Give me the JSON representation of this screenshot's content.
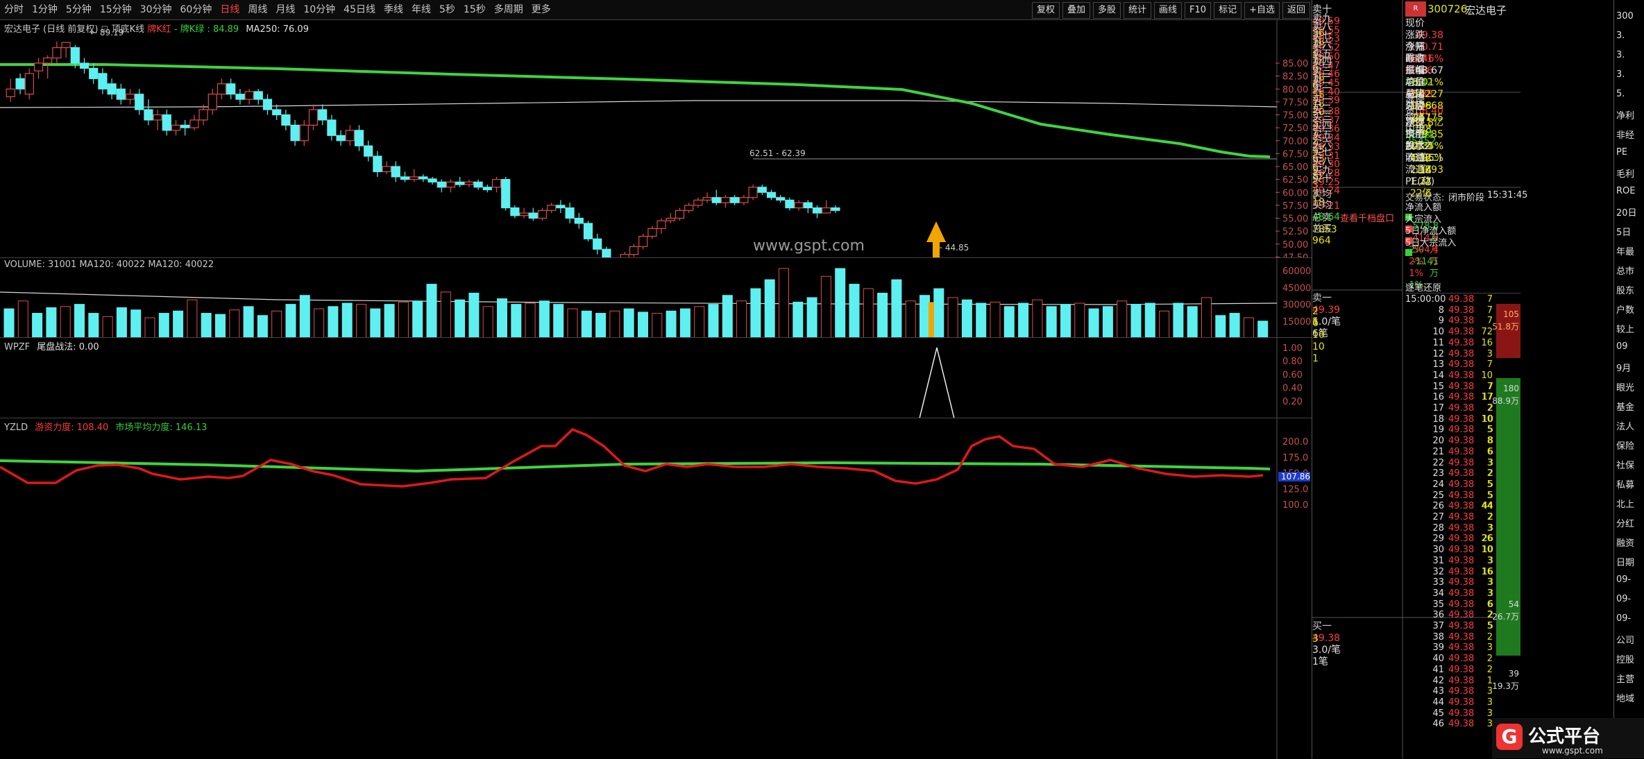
{
  "toolbar": {
    "periods": [
      "分时",
      "1分钟",
      "5分钟",
      "15分钟",
      "30分钟",
      "60分钟",
      "日线",
      "周线",
      "月线",
      "10分钟",
      "45日线",
      "季线",
      "年线",
      "5秒",
      "15秒",
      "多周期",
      "更多"
    ],
    "active_period": "日线",
    "buttons": [
      "复权",
      "叠加",
      "多股",
      "统计",
      "画线",
      "F10",
      "标记",
      "+自选",
      "返回"
    ]
  },
  "main_chart": {
    "title": "宏达电子 (日线 前复权)",
    "indicator": "顶底K线",
    "legend1": "牌K红",
    "legend2": "牌K绿",
    "legend2_val": "84.89",
    "ma_label": "MA250: 76.09",
    "high_label": "89.19",
    "range_label": "62.51 - 62.39",
    "low_label": "44.85",
    "watermark": "www.gspt.com",
    "y_ticks": [
      "85.00",
      "82.50",
      "80.00",
      "77.50",
      "75.00",
      "72.50",
      "70.00",
      "67.50",
      "65.00",
      "62.50",
      "60.00",
      "57.50",
      "55.00",
      "52.50",
      "50.00",
      "47.50",
      "45.00"
    ]
  },
  "volume_panel": {
    "title": "VOLUME: 31001  MA120: 40022  MA120: 40022",
    "y_ticks": [
      "60000",
      "45000",
      "30000",
      "15000"
    ]
  },
  "wpzf_panel": {
    "title": "WPZF",
    "sub": "尾盘战法: 0.00",
    "y_ticks": [
      "1.00",
      "0.80",
      "0.60",
      "0.40",
      "0.20"
    ]
  },
  "yzld_panel": {
    "title": "YZLD",
    "sub1": "游资力度: 108.40",
    "sub2": "市场平均力度: 146.13",
    "y_ticks": [
      "200.0",
      "175.0",
      "150.0",
      "125.0",
      "100.0"
    ],
    "cur_value": "107.86"
  },
  "order_book": {
    "sell": [
      {
        "label": "卖十",
        "price": "49.59",
        "vol": "36"
      },
      {
        "label": "卖九",
        "price": "49.55",
        "vol": "18"
      },
      {
        "label": "卖八",
        "price": "49.53",
        "vol": "2"
      },
      {
        "label": "卖七",
        "price": "49.52",
        "vol": "12"
      },
      {
        "label": "卖六",
        "price": "49.50",
        "vol": "6"
      },
      {
        "label": "卖五",
        "price": "49.47",
        "vol": "18"
      },
      {
        "label": "卖四",
        "price": "49.46",
        "vol": "6"
      },
      {
        "label": "卖三",
        "price": "49.45",
        "vol": "55"
      },
      {
        "label": "卖二",
        "price": "49.40",
        "vol": "18"
      },
      {
        "label": "卖一",
        "price": "49.39",
        "vol": "30"
      }
    ],
    "buy": [
      {
        "label": "买一",
        "price": "49.38",
        "vol": "3"
      },
      {
        "label": "买二",
        "price": "49.37",
        "vol": "7"
      },
      {
        "label": "买三",
        "price": "49.36",
        "vol": "2"
      },
      {
        "label": "买四",
        "price": "49.34",
        "vol": "43"
      },
      {
        "label": "买五",
        "price": "49.33",
        "vol": "63"
      },
      {
        "label": "买六",
        "price": "49.31",
        "vol": "6"
      },
      {
        "label": "买七",
        "price": "49.30",
        "vol": "82"
      },
      {
        "label": "买八",
        "price": "49.28",
        "vol": "3"
      },
      {
        "label": "买九",
        "price": "49.25",
        "vol": "3"
      },
      {
        "label": "买十",
        "price": "49.24",
        "vol": "18"
      }
    ],
    "avg_sell_label": "卖均",
    "avg_sell": "53.21",
    "total_sell_label": "总卖",
    "total_sell": "7853",
    "avg_buy_label": "买均",
    "avg_buy": "48.64",
    "total_buy_label": "总买",
    "total_buy": "964",
    "link": "查看千档盘口",
    "s1_label": "卖一",
    "s1_price": "49.39",
    "s1_per": "5.0/笔",
    "s1_count": "6笔",
    "s1_queue": [
      "2",
      "6",
      "10",
      "10",
      "1"
    ],
    "s1_queue2": [
      "1"
    ],
    "b1_label": "买一",
    "b1_price": "49.38",
    "b1_per": "3.0/笔",
    "b1_count": "1笔",
    "b1_queue": [
      "3"
    ]
  },
  "quote": {
    "code": "300726",
    "name": "宏达电子",
    "rows": [
      [
        "现价",
        "49.38",
        "今开",
        "48.71"
      ],
      [
        "涨跌",
        "0.71",
        "最高",
        "50.86"
      ],
      [
        "涨幅",
        "1.46%",
        "最低",
        "48.42"
      ],
      [
        "昨收",
        "48.67",
        "均价",
        "49.88"
      ],
      [
        "振幅",
        "5.01%",
        "量比",
        "1.08"
      ],
      [
        "总量",
        "50227",
        "总额",
        "2.51亿"
      ],
      [
        "总笔",
        "17668",
        "每笔",
        "2.8"
      ],
      [
        "外盘",
        "24775",
        "内盘",
        "25452"
      ],
      [
        "涨停",
        "58.40",
        "跌停",
        "38.94"
      ],
      [
        "资产",
        "51.8亿",
        "市值",
        "203.4亿"
      ],
      [
        "净资",
        "9.85",
        "股本",
        "4.12亿"
      ],
      [
        "换手",
        "2.35%",
        "流通",
        "2.14亿"
      ],
      [
        "换手Z",
        "3.96%",
        "流通Z",
        "1.27亿"
      ],
      [
        "收益(二)",
        "1.093",
        "PE(动)",
        "22.6"
      ]
    ],
    "status_label": "交易状态:",
    "status": "闭市阶段",
    "status_time": "15:31:45",
    "flows": [
      [
        "净流入额",
        "-578.8万",
        "-2%"
      ],
      [
        "大宗流入",
        "414.9万",
        "2%"
      ],
      [
        "5日净流入额",
        "504.4万",
        "1%"
      ],
      [
        "5日大宗流入",
        "-1141万",
        "-1%"
      ]
    ]
  },
  "ticks": {
    "title": "逐笔还原",
    "header_time": "15:00:00",
    "rows": [
      [
        "15:00:00",
        "49.38",
        "7",
        "7"
      ],
      [
        "8",
        "49.38",
        "7",
        "7"
      ],
      [
        "9",
        "49.38",
        "7",
        "7"
      ],
      [
        "10",
        "49.38",
        "72",
        "72"
      ],
      [
        "11",
        "49.38",
        "16",
        "16"
      ],
      [
        "12",
        "49.38",
        "3",
        "3"
      ],
      [
        "13",
        "49.38",
        "7",
        "7"
      ],
      [
        "14",
        "49.38",
        "10",
        "10"
      ],
      [
        "15",
        "49.38",
        "7",
        "7"
      ],
      [
        "16",
        "49.38",
        "17",
        "17"
      ],
      [
        "17",
        "49.38",
        "2",
        "2"
      ],
      [
        "18",
        "49.38",
        "10",
        "10"
      ],
      [
        "19",
        "49.38",
        "5",
        "5"
      ],
      [
        "20",
        "49.38",
        "8",
        "8"
      ],
      [
        "21",
        "49.38",
        "6",
        "6"
      ],
      [
        "22",
        "49.38",
        "3",
        "3"
      ],
      [
        "23",
        "49.38",
        "2",
        "2"
      ],
      [
        "24",
        "49.38",
        "5",
        "5"
      ],
      [
        "25",
        "49.38",
        "5",
        "5"
      ],
      [
        "26",
        "49.38",
        "44",
        "44"
      ],
      [
        "27",
        "49.38",
        "2",
        "2"
      ],
      [
        "28",
        "49.38",
        "3",
        "3"
      ],
      [
        "29",
        "49.38",
        "26",
        "26"
      ],
      [
        "30",
        "49.38",
        "10",
        "10"
      ],
      [
        "31",
        "49.38",
        "3",
        "3"
      ],
      [
        "32",
        "49.38",
        "16",
        "16"
      ],
      [
        "33",
        "49.38",
        "3",
        "3"
      ],
      [
        "34",
        "49.38",
        "3",
        "3"
      ],
      [
        "35",
        "49.38",
        "6",
        "6"
      ],
      [
        "36",
        "49.38",
        "2",
        "2"
      ],
      [
        "37",
        "49.38",
        "5",
        "5"
      ],
      [
        "38",
        "49.38",
        "2",
        "2"
      ],
      [
        "39",
        "49.38",
        "3",
        "3"
      ],
      [
        "40",
        "49.38",
        "2",
        "2"
      ],
      [
        "41",
        "49.38",
        "2",
        "2"
      ],
      [
        "42",
        "49.38",
        "1",
        "1"
      ],
      [
        "43",
        "49.38",
        "3",
        "3"
      ],
      [
        "44",
        "49.38",
        "3",
        "3"
      ],
      [
        "45",
        "49.38",
        "3",
        "3"
      ],
      [
        "46",
        "49.38",
        "3",
        "3"
      ]
    ],
    "bar1_top": "105",
    "bar1_bottom": "51.8万",
    "bar2_top": "180",
    "bar2_bottom": "88.9万",
    "bar3_top": "54",
    "bar3_bottom": "26.7万",
    "bar4_top": "39",
    "bar4_bottom": "19.3万"
  },
  "side_labels": [
    "300",
    "3.",
    "3.",
    "3.",
    "5.",
    "净利",
    "非经",
    "PE",
    "毛利",
    "ROE",
    "20日",
    "5日",
    "年最",
    "总市",
    "股东",
    "户数",
    "较上",
    "09",
    "9月",
    "眼光",
    "基金",
    "法人",
    "保险",
    "社保",
    "私募",
    "北上",
    "分红",
    "融资",
    "日期",
    "09-",
    "09-",
    "09-",
    "公司",
    "控股",
    "主营",
    "地域"
  ],
  "logo": {
    "text": "公式平台",
    "sub": "www.gspt.com"
  }
}
